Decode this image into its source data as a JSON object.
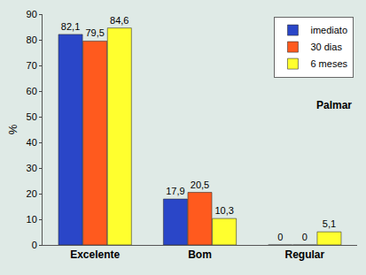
{
  "chart_data": {
    "type": "bar",
    "y_label": "%",
    "categories": [
      "Excelente",
      "Bom",
      "Regular"
    ],
    "series": [
      {
        "name": "imediato",
        "color": "#2a46c8",
        "values": [
          82.1,
          17.9,
          0
        ],
        "value_labels": [
          "82,1",
          "17,9",
          "0"
        ]
      },
      {
        "name": "30 dias",
        "color": "#ff5a1e",
        "values": [
          79.5,
          20.5,
          0
        ],
        "value_labels": [
          "79,5",
          "20,5",
          "0"
        ]
      },
      {
        "name": "6 meses",
        "color": "#ffff2e",
        "values": [
          84.6,
          10.3,
          5.1
        ],
        "value_labels": [
          "84,6",
          "10,3",
          "5,1"
        ]
      }
    ],
    "annotations": [
      "Palmar"
    ],
    "ylim": [
      0,
      90
    ],
    "yticks": [
      0,
      10,
      20,
      30,
      40,
      50,
      60,
      70,
      80,
      90
    ],
    "grid": false,
    "legend": "top right",
    "data_labels": true
  }
}
